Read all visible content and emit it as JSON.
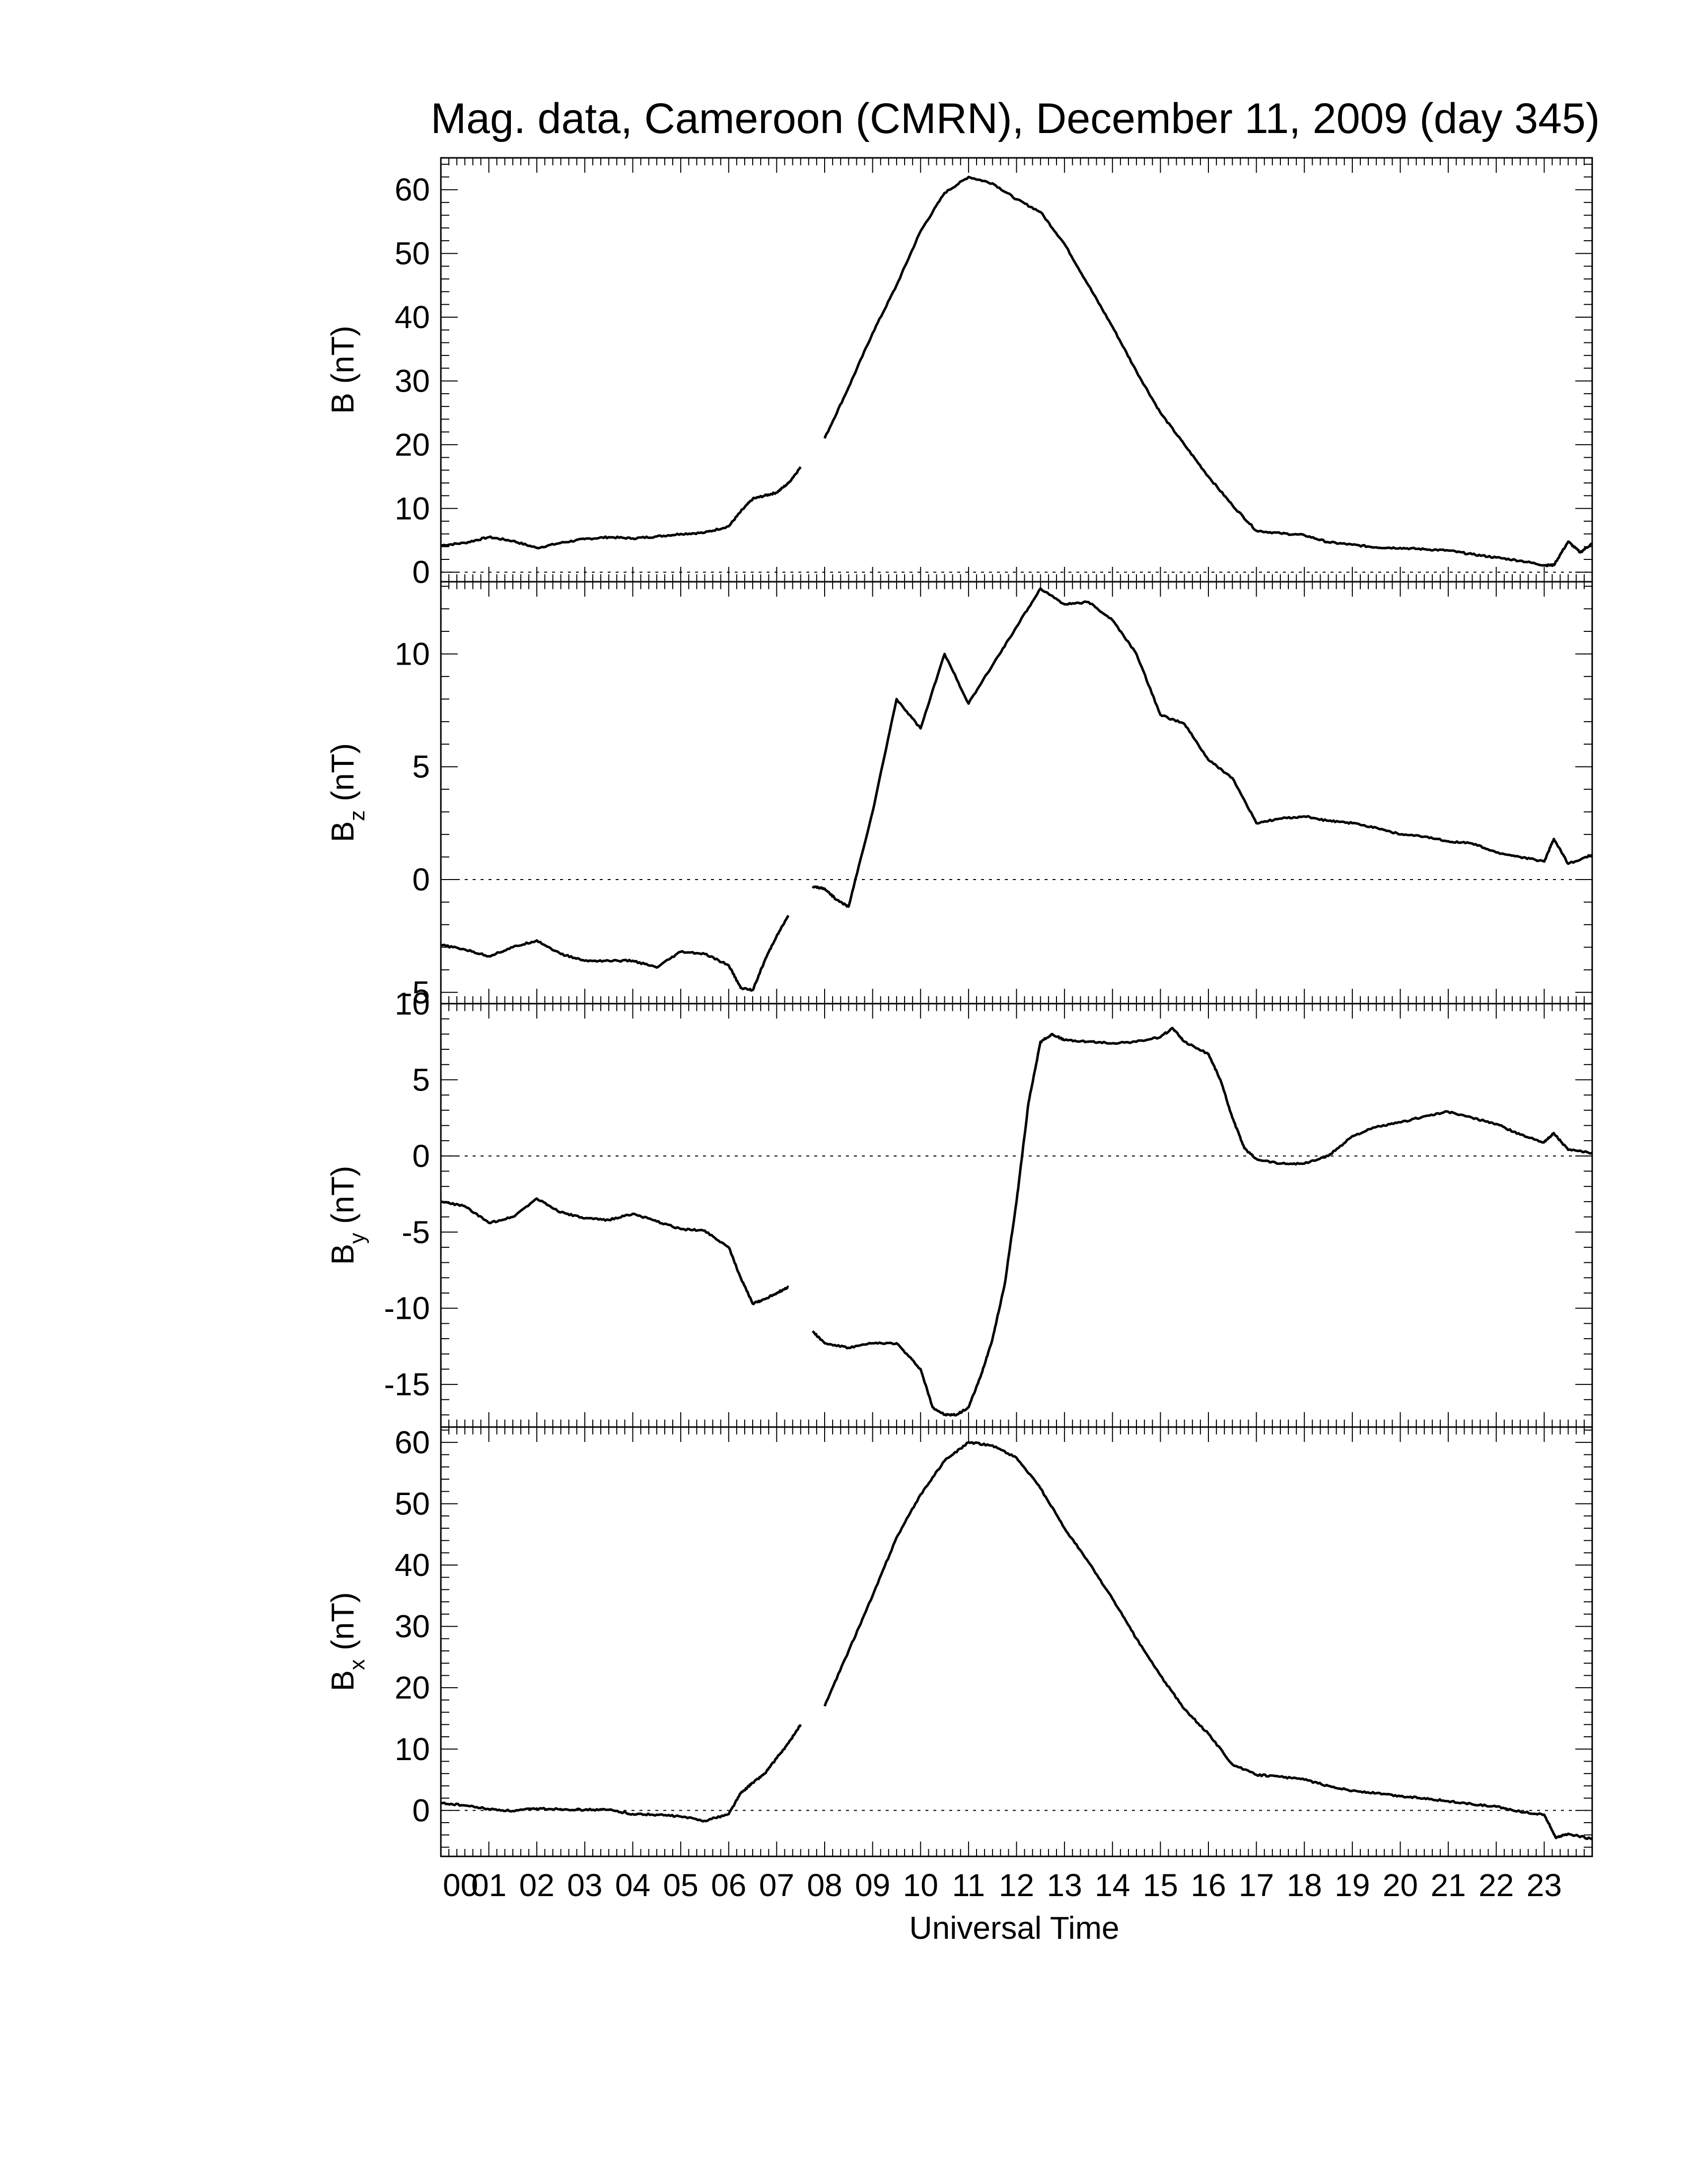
{
  "figure": {
    "title": "Mag. data, Cameroon (CMRN), December 11, 2009 (day 345)",
    "xlabel": "Universal Time"
  },
  "chart_data": [
    {
      "type": "line",
      "panel": "B",
      "ylabel": "B (nT)",
      "ylabel_sub": "",
      "ylim": [
        -1.5,
        65
      ],
      "yticks": [
        0,
        10,
        20,
        30,
        40,
        50,
        60
      ],
      "ytick_labels": [
        "0",
        "10",
        "20",
        "30",
        "40",
        "50",
        "60"
      ],
      "zero_line": true,
      "x_hours": [
        0,
        0.5,
        1,
        1.5,
        2,
        2.5,
        3,
        3.5,
        4,
        4.5,
        5,
        5.5,
        6,
        6.25,
        6.5,
        6.75,
        7,
        7.25,
        7.5,
        7.75,
        8,
        8.5,
        9,
        9.5,
        10,
        10.5,
        11,
        11.5,
        12,
        12.5,
        13,
        13.5,
        14,
        14.5,
        15,
        15.5,
        16,
        16.5,
        17,
        17.5,
        18,
        18.5,
        19,
        19.5,
        20,
        20.5,
        21,
        21.5,
        22,
        22.5,
        23,
        23.2,
        23.5,
        23.75,
        24
      ],
      "values": [
        4.2,
        4.6,
        5.5,
        4.9,
        3.8,
        4.6,
        5.2,
        5.5,
        5.3,
        5.6,
        6.0,
        6.2,
        7.2,
        9.5,
        11.5,
        12.0,
        12.5,
        14.0,
        16.5,
        null,
        21.0,
        29.0,
        37.5,
        45.0,
        53.5,
        59.5,
        62.0,
        61.0,
        58.5,
        56.5,
        51.5,
        45.0,
        38.5,
        31.5,
        25.0,
        20.0,
        15.0,
        10.5,
        6.5,
        6.1,
        5.8,
        4.7,
        4.3,
        3.9,
        3.8,
        3.6,
        3.4,
        2.8,
        2.3,
        1.8,
        1.1,
        1.1,
        4.8,
        3.1,
        4.5
      ]
    },
    {
      "type": "line",
      "panel": "Bz",
      "ylabel": "B",
      "ylabel_sub": "z",
      "ylabel_unit": " (nT)",
      "ylim": [
        -5.5,
        13.2
      ],
      "yticks": [
        -5,
        0,
        5,
        10
      ],
      "ytick_labels": [
        "-5",
        "0",
        "5",
        "10"
      ],
      "zero_line": true,
      "x_hours": [
        0,
        0.5,
        1,
        1.5,
        2,
        2.5,
        3,
        3.5,
        4,
        4.5,
        5,
        5.5,
        6,
        6.25,
        6.5,
        6.75,
        7,
        7.25,
        7.5,
        7.75,
        8,
        8.25,
        8.5,
        9,
        9.5,
        10,
        10.5,
        11,
        11.5,
        12,
        12.5,
        13,
        13.5,
        14,
        14.5,
        15,
        15.5,
        16,
        16.5,
        17,
        17.5,
        18,
        18.5,
        19,
        19.5,
        20,
        20.5,
        21,
        21.5,
        22,
        22.5,
        23,
        23.2,
        23.5,
        24
      ],
      "values": [
        -2.9,
        -3.1,
        -3.4,
        -3.0,
        -2.7,
        -3.3,
        -3.6,
        -3.6,
        -3.6,
        -3.9,
        -3.2,
        -3.3,
        -3.8,
        -4.8,
        -4.9,
        -3.6,
        -2.5,
        -1.6,
        null,
        -0.3,
        -0.4,
        -0.9,
        -1.2,
        3.0,
        8.0,
        6.7,
        10.0,
        7.8,
        9.5,
        11.2,
        12.9,
        12.2,
        12.3,
        11.5,
        10.0,
        7.3,
        6.9,
        5.3,
        4.5,
        2.5,
        2.7,
        2.8,
        2.6,
        2.5,
        2.3,
        2.0,
        1.9,
        1.7,
        1.6,
        1.2,
        1.0,
        0.8,
        1.8,
        0.7,
        1.1
      ]
    },
    {
      "type": "line",
      "panel": "By",
      "ylabel": "B",
      "ylabel_sub": "y",
      "ylabel_unit": " (nT)",
      "ylim": [
        -17.8,
        10
      ],
      "yticks": [
        -15,
        -10,
        -5,
        0,
        5,
        10
      ],
      "ytick_labels": [
        "-15",
        "-10",
        "-5",
        "0",
        "5",
        "10"
      ],
      "zero_line": true,
      "x_hours": [
        0,
        0.5,
        1,
        1.5,
        2,
        2.5,
        3,
        3.5,
        4,
        4.5,
        5,
        5.5,
        6,
        6.25,
        6.5,
        6.75,
        7,
        7.25,
        7.5,
        7.75,
        8,
        8.5,
        9,
        9.5,
        10,
        10.25,
        10.5,
        10.75,
        11,
        11.25,
        11.5,
        11.75,
        12,
        12.25,
        12.5,
        12.75,
        13,
        13.5,
        14,
        14.5,
        15,
        15.25,
        15.5,
        16,
        16.25,
        16.5,
        16.75,
        17,
        17.5,
        18,
        18.5,
        19,
        19.5,
        20,
        20.5,
        21,
        21.5,
        22,
        22.5,
        23,
        23.2,
        23.5,
        24
      ],
      "values": [
        -3.0,
        -3.3,
        -4.4,
        -4.0,
        -2.8,
        -3.7,
        -4.1,
        -4.2,
        -3.8,
        -4.3,
        -4.8,
        -4.9,
        -6.0,
        -8.0,
        -9.7,
        -9.4,
        -9.0,
        -8.6,
        null,
        -11.5,
        -12.3,
        -12.6,
        -12.3,
        -12.3,
        -14.0,
        -16.5,
        -17.0,
        -17.0,
        -16.5,
        -14.5,
        -12.0,
        -8.5,
        -3.0,
        3.5,
        7.5,
        8.0,
        7.6,
        7.5,
        7.4,
        7.5,
        7.8,
        8.4,
        7.5,
        6.7,
        5.0,
        2.5,
        0.5,
        -0.2,
        -0.5,
        -0.5,
        0.0,
        1.3,
        1.9,
        2.2,
        2.6,
        2.9,
        2.5,
        2.1,
        1.4,
        0.9,
        1.5,
        0.4,
        0.2
      ]
    },
    {
      "type": "line",
      "panel": "Bx",
      "ylabel": "B",
      "ylabel_sub": "x",
      "ylabel_unit": " (nT)",
      "ylim": [
        -7.5,
        62.5
      ],
      "yticks": [
        0,
        10,
        20,
        30,
        40,
        50,
        60
      ],
      "ytick_labels": [
        "0",
        "10",
        "20",
        "30",
        "40",
        "50",
        "60"
      ],
      "zero_line": true,
      "x_hours": [
        0,
        0.5,
        1,
        1.5,
        2,
        2.5,
        3,
        3.5,
        4,
        4.5,
        5,
        5.5,
        6,
        6.25,
        6.5,
        6.75,
        7,
        7.25,
        7.5,
        7.75,
        8,
        8.5,
        9,
        9.5,
        10,
        10.5,
        11,
        11.5,
        12,
        12.5,
        13,
        13.5,
        14,
        14.5,
        15,
        15.5,
        16,
        16.5,
        17,
        17.5,
        18,
        18.5,
        19,
        19.5,
        20,
        20.5,
        21,
        21.5,
        22,
        22.5,
        23,
        23.25,
        23.5,
        24
      ],
      "values": [
        1.2,
        0.8,
        0.2,
        -0.1,
        0.3,
        0.2,
        0.1,
        0.1,
        -0.6,
        -0.7,
        -1.0,
        -1.7,
        -0.6,
        2.8,
        4.5,
        6.0,
        8.5,
        11.0,
        14.0,
        null,
        17.0,
        26.0,
        35.0,
        44.5,
        51.5,
        57.0,
        60.0,
        59.5,
        57.5,
        52.5,
        46.0,
        40.5,
        34.5,
        28.0,
        22.0,
        16.5,
        12.5,
        7.5,
        5.8,
        5.5,
        5.0,
        4.0,
        3.2,
        2.8,
        2.3,
        2.0,
        1.5,
        1.0,
        0.6,
        -0.2,
        -0.7,
        -4.5,
        -3.8,
        -4.7
      ]
    }
  ],
  "x_axis": {
    "range_hours": [
      0,
      24
    ],
    "tick_labels": [
      "00",
      "01",
      "02",
      "03",
      "04",
      "05",
      "06",
      "07",
      "08",
      "09",
      "10",
      "11",
      "12",
      "13",
      "14",
      "15",
      "16",
      "17",
      "18",
      "19",
      "20",
      "21",
      "22",
      "23"
    ]
  }
}
